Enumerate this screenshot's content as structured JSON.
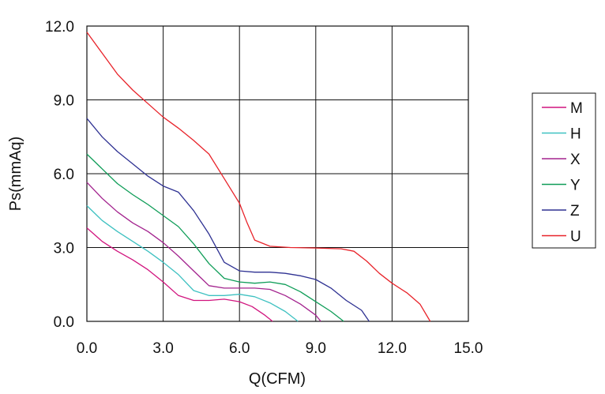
{
  "chart_data": {
    "type": "line",
    "title": "",
    "xlabel": "Q(CFM)",
    "ylabel": "Ps(mmAq)",
    "xlim": [
      0,
      15
    ],
    "ylim": [
      0,
      12
    ],
    "xticks": [
      0,
      3,
      6,
      9,
      12,
      15
    ],
    "yticks": [
      0,
      3,
      6,
      9,
      12
    ],
    "xtick_labels": [
      "0.0",
      "3.0",
      "6.0",
      "9.0",
      "12.0",
      "15.0"
    ],
    "ytick_labels": [
      "0.0",
      "3.0",
      "6.0",
      "9.0",
      "12.0"
    ],
    "grid": true,
    "legend_placement": "right",
    "series": [
      {
        "name": "M",
        "color": "#d1147e",
        "points": [
          [
            0,
            3.8
          ],
          [
            0.6,
            3.25
          ],
          [
            1.2,
            2.85
          ],
          [
            1.8,
            2.5
          ],
          [
            2.4,
            2.1
          ],
          [
            3.0,
            1.6
          ],
          [
            3.6,
            1.05
          ],
          [
            4.2,
            0.85
          ],
          [
            4.8,
            0.85
          ],
          [
            5.4,
            0.9
          ],
          [
            6.0,
            0.8
          ],
          [
            6.5,
            0.6
          ],
          [
            7.0,
            0.25
          ],
          [
            7.3,
            0.0
          ]
        ]
      },
      {
        "name": "H",
        "color": "#3ec1c1",
        "points": [
          [
            0,
            4.7
          ],
          [
            0.6,
            4.1
          ],
          [
            1.2,
            3.65
          ],
          [
            1.8,
            3.25
          ],
          [
            2.4,
            2.85
          ],
          [
            3.0,
            2.4
          ],
          [
            3.6,
            1.9
          ],
          [
            4.2,
            1.25
          ],
          [
            4.8,
            1.05
          ],
          [
            5.4,
            1.05
          ],
          [
            6.0,
            1.1
          ],
          [
            6.6,
            1.0
          ],
          [
            7.2,
            0.75
          ],
          [
            7.8,
            0.4
          ],
          [
            8.3,
            0.0
          ]
        ]
      },
      {
        "name": "X",
        "color": "#a3238e",
        "points": [
          [
            0,
            5.65
          ],
          [
            0.6,
            5.0
          ],
          [
            1.2,
            4.45
          ],
          [
            1.8,
            4.0
          ],
          [
            2.4,
            3.65
          ],
          [
            3.0,
            3.2
          ],
          [
            3.6,
            2.65
          ],
          [
            4.2,
            2.05
          ],
          [
            4.8,
            1.45
          ],
          [
            5.4,
            1.35
          ],
          [
            6.0,
            1.35
          ],
          [
            6.6,
            1.35
          ],
          [
            7.2,
            1.3
          ],
          [
            7.8,
            1.05
          ],
          [
            8.4,
            0.7
          ],
          [
            9.0,
            0.25
          ],
          [
            9.2,
            0.0
          ]
        ]
      },
      {
        "name": "Y",
        "color": "#0f9d58",
        "points": [
          [
            0,
            6.8
          ],
          [
            0.6,
            6.2
          ],
          [
            1.2,
            5.6
          ],
          [
            1.8,
            5.15
          ],
          [
            2.4,
            4.75
          ],
          [
            3.0,
            4.3
          ],
          [
            3.6,
            3.85
          ],
          [
            4.2,
            3.15
          ],
          [
            4.8,
            2.35
          ],
          [
            5.4,
            1.75
          ],
          [
            6.0,
            1.6
          ],
          [
            6.6,
            1.55
          ],
          [
            7.2,
            1.6
          ],
          [
            7.8,
            1.5
          ],
          [
            8.4,
            1.2
          ],
          [
            9.0,
            0.8
          ],
          [
            9.6,
            0.4
          ],
          [
            10.1,
            0.0
          ]
        ]
      },
      {
        "name": "Z",
        "color": "#2e3192",
        "points": [
          [
            0,
            8.25
          ],
          [
            0.6,
            7.5
          ],
          [
            1.2,
            6.9
          ],
          [
            1.8,
            6.4
          ],
          [
            2.4,
            5.9
          ],
          [
            3.0,
            5.5
          ],
          [
            3.6,
            5.25
          ],
          [
            4.2,
            4.5
          ],
          [
            4.8,
            3.55
          ],
          [
            5.4,
            2.4
          ],
          [
            6.0,
            2.05
          ],
          [
            6.6,
            2.0
          ],
          [
            7.2,
            2.0
          ],
          [
            7.8,
            1.95
          ],
          [
            8.4,
            1.85
          ],
          [
            9.0,
            1.7
          ],
          [
            9.6,
            1.35
          ],
          [
            10.2,
            0.85
          ],
          [
            10.8,
            0.45
          ],
          [
            11.1,
            0.0
          ]
        ]
      },
      {
        "name": "U",
        "color": "#e8232a",
        "points": [
          [
            0,
            11.75
          ],
          [
            0.6,
            10.9
          ],
          [
            1.2,
            10.05
          ],
          [
            1.8,
            9.4
          ],
          [
            2.4,
            8.85
          ],
          [
            3.0,
            8.3
          ],
          [
            3.6,
            7.85
          ],
          [
            4.2,
            7.35
          ],
          [
            4.8,
            6.8
          ],
          [
            5.4,
            5.8
          ],
          [
            6.0,
            4.8
          ],
          [
            6.3,
            4.0
          ],
          [
            6.6,
            3.3
          ],
          [
            7.2,
            3.05
          ],
          [
            8.0,
            3.0
          ],
          [
            9.0,
            2.98
          ],
          [
            10.0,
            2.95
          ],
          [
            10.5,
            2.85
          ],
          [
            11.0,
            2.45
          ],
          [
            11.5,
            1.95
          ],
          [
            12.0,
            1.55
          ],
          [
            12.6,
            1.15
          ],
          [
            13.1,
            0.7
          ],
          [
            13.5,
            0.0
          ]
        ]
      }
    ]
  }
}
